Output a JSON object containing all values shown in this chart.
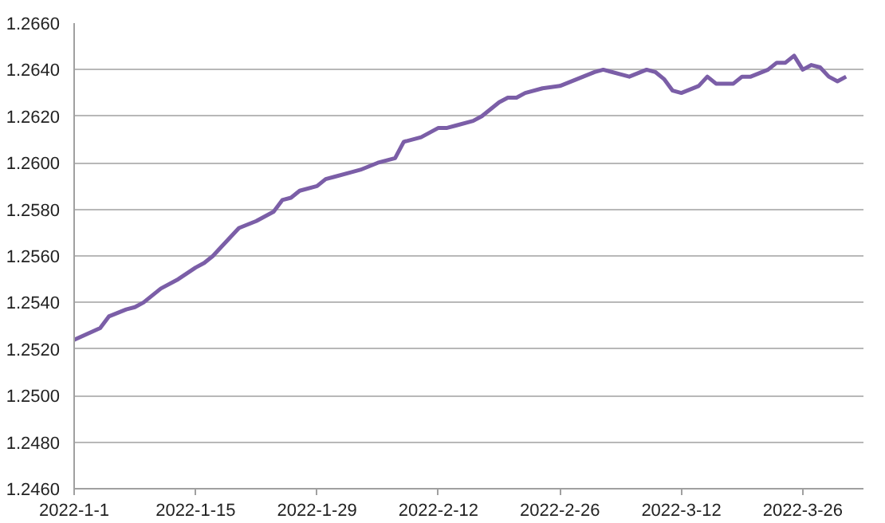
{
  "chart_data": {
    "type": "line",
    "x": [
      "2022-01-01",
      "2022-01-04",
      "2022-01-05",
      "2022-01-07",
      "2022-01-08",
      "2022-01-09",
      "2022-01-10",
      "2022-01-11",
      "2022-01-13",
      "2022-01-15",
      "2022-01-16",
      "2022-01-17",
      "2022-01-18",
      "2022-01-20",
      "2022-01-22",
      "2022-01-24",
      "2022-01-25",
      "2022-01-26",
      "2022-01-27",
      "2022-01-29",
      "2022-01-30",
      "2022-01-31",
      "2022-02-02",
      "2022-02-03",
      "2022-02-05",
      "2022-02-07",
      "2022-02-08",
      "2022-02-10",
      "2022-02-12",
      "2022-02-13",
      "2022-02-14",
      "2022-02-16",
      "2022-02-17",
      "2022-02-19",
      "2022-02-20",
      "2022-02-21",
      "2022-02-22",
      "2022-02-24",
      "2022-02-26",
      "2022-02-28",
      "2022-03-02",
      "2022-03-03",
      "2022-03-06",
      "2022-03-08",
      "2022-03-09",
      "2022-03-10",
      "2022-03-11",
      "2022-03-12",
      "2022-03-14",
      "2022-03-15",
      "2022-03-16",
      "2022-03-18",
      "2022-03-19",
      "2022-03-20",
      "2022-03-22",
      "2022-03-23",
      "2022-03-24",
      "2022-03-25",
      "2022-03-26",
      "2022-03-27",
      "2022-03-28",
      "2022-03-29",
      "2022-03-30",
      "2022-03-31"
    ],
    "series": [
      {
        "color": "#7b5ea7",
        "values": [
          1.2524,
          1.2529,
          1.2534,
          1.2537,
          1.2538,
          1.254,
          1.2543,
          1.2546,
          1.255,
          1.2555,
          1.2557,
          1.256,
          1.2564,
          1.2572,
          1.2575,
          1.2579,
          1.2584,
          1.2585,
          1.2588,
          1.259,
          1.2593,
          1.2594,
          1.2596,
          1.2597,
          1.26,
          1.2602,
          1.2609,
          1.2611,
          1.2615,
          1.2615,
          1.2616,
          1.2618,
          1.262,
          1.2626,
          1.2628,
          1.2628,
          1.263,
          1.2632,
          1.2633,
          1.2636,
          1.2639,
          1.264,
          1.2637,
          1.264,
          1.2639,
          1.2636,
          1.2631,
          1.263,
          1.2633,
          1.2637,
          1.2634,
          1.2634,
          1.2637,
          1.2637,
          1.264,
          1.2643,
          1.2643,
          1.2646,
          1.264,
          1.2642,
          1.2641,
          1.2637,
          1.2635,
          1.2637
        ]
      }
    ],
    "xlim": [
      "2022-01-01",
      "2022-04-02"
    ],
    "xticks": [
      {
        "value": "2022-01-01",
        "label": "2022-1-1"
      },
      {
        "value": "2022-01-15",
        "label": "2022-1-15"
      },
      {
        "value": "2022-01-29",
        "label": "2022-1-29"
      },
      {
        "value": "2022-02-12",
        "label": "2022-2-12"
      },
      {
        "value": "2022-02-26",
        "label": "2022-2-26"
      },
      {
        "value": "2022-03-12",
        "label": "2022-3-12"
      },
      {
        "value": "2022-03-26",
        "label": "2022-3-26"
      }
    ],
    "ylim": [
      1.246,
      1.266
    ],
    "yticks": [
      {
        "value": 1.246,
        "label": "1.2460"
      },
      {
        "value": 1.248,
        "label": "1.2480"
      },
      {
        "value": 1.25,
        "label": "1.2500"
      },
      {
        "value": 1.252,
        "label": "1.2520"
      },
      {
        "value": 1.254,
        "label": "1.2540"
      },
      {
        "value": 1.256,
        "label": "1.2560"
      },
      {
        "value": 1.258,
        "label": "1.2580"
      },
      {
        "value": 1.26,
        "label": "1.2600"
      },
      {
        "value": 1.262,
        "label": "1.2620"
      },
      {
        "value": 1.264,
        "label": "1.2640"
      },
      {
        "value": 1.266,
        "label": "1.2660"
      }
    ],
    "grid": "y",
    "marker": "none",
    "line_style": "solid"
  }
}
